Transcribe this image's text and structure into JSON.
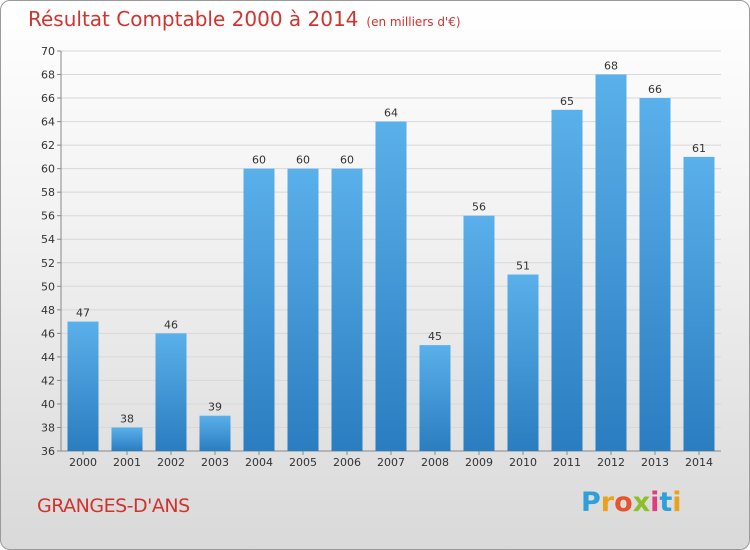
{
  "chart_data": {
    "type": "bar",
    "title": "Résultat Comptable 2000 à 2014",
    "subtitle": "(en milliers d'€)",
    "categories": [
      "2000",
      "2001",
      "2002",
      "2003",
      "2004",
      "2005",
      "2006",
      "2007",
      "2008",
      "2009",
      "2010",
      "2011",
      "2012",
      "2013",
      "2014"
    ],
    "values": [
      47,
      38,
      46,
      39,
      60,
      60,
      60,
      64,
      45,
      56,
      51,
      65,
      68,
      66,
      61
    ],
    "ylim": [
      36,
      70
    ],
    "yticks": [
      36,
      38,
      40,
      42,
      44,
      46,
      48,
      50,
      52,
      54,
      56,
      58,
      60,
      62,
      64,
      66,
      68,
      70
    ],
    "grid": true,
    "bar_color": "#3a8fd6",
    "xlabel": "",
    "ylabel": ""
  },
  "commune": "GRANGES-D'ANS",
  "logo": {
    "text": "Proxiti",
    "letters": [
      "P",
      "r",
      "o",
      "x",
      "i",
      "t",
      "i"
    ],
    "colors": [
      "#2e9fd8",
      "#e8a21c",
      "#e8542a",
      "#8cbf2a",
      "#e23c7a",
      "#2e9fd8",
      "#e8a21c"
    ]
  },
  "colors": {
    "title": "#d2332e",
    "grid": "#d8d8d8"
  }
}
